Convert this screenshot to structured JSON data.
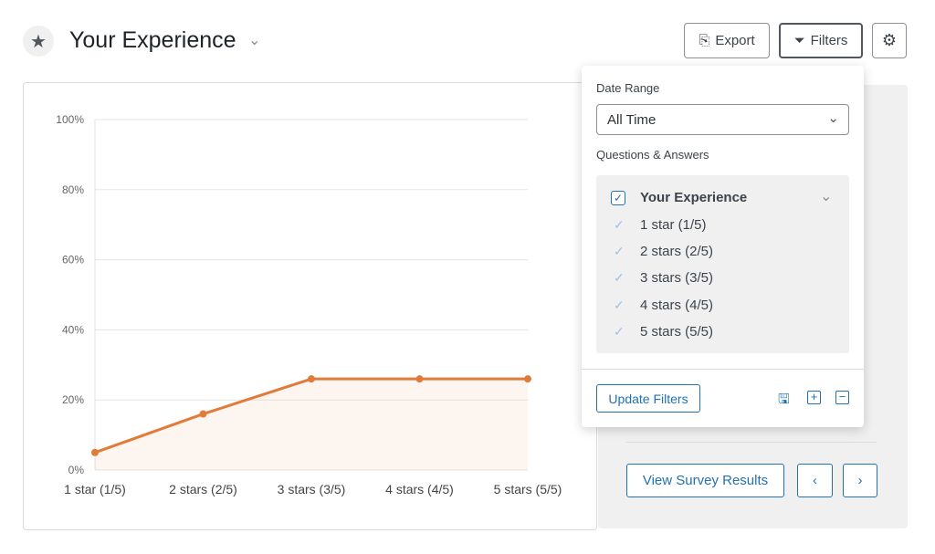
{
  "header": {
    "title": "Your Experience",
    "export": "Export",
    "filters": "Filters"
  },
  "chart_data": {
    "type": "line",
    "categories": [
      "1 star (1/5)",
      "2 stars (2/5)",
      "3 stars (3/5)",
      "4 stars (4/5)",
      "5 stars (5/5)"
    ],
    "values": [
      5,
      16,
      26,
      26,
      26
    ],
    "color": "#e07b39",
    "ylim": [
      0,
      100
    ],
    "yticks": [
      {
        "value": 0,
        "label": "0%"
      },
      {
        "value": 20,
        "label": "20%"
      },
      {
        "value": 40,
        "label": "40%"
      },
      {
        "value": 60,
        "label": "60%"
      },
      {
        "value": 80,
        "label": "80%"
      },
      {
        "value": 100,
        "label": "100%"
      }
    ],
    "grid": true
  },
  "filters": {
    "date_range_label": "Date Range",
    "date_range": "All Time",
    "questions_label": "Questions & Answers",
    "question": "Your Experience",
    "answers": [
      "1 star (1/5)",
      "2 stars (2/5)",
      "3 stars (3/5)",
      "4 stars (4/5)",
      "5 stars (5/5)"
    ],
    "update": "Update Filters"
  },
  "footer": {
    "view": "View Survey Results"
  }
}
